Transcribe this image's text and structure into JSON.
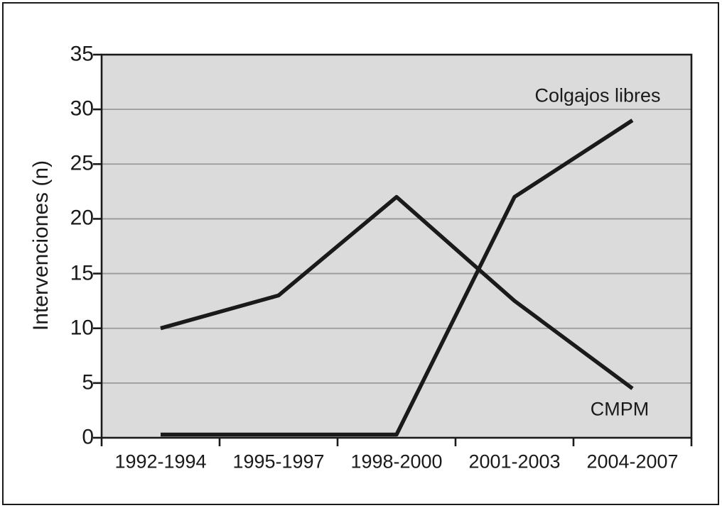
{
  "figure": {
    "background": "#ffffff",
    "frame_color": "#1a1a1a"
  },
  "chart_data": {
    "type": "line",
    "title": "",
    "xlabel": "",
    "ylabel": "Intervenciones (n)",
    "categories": [
      "1992-1994",
      "1995-1997",
      "1998-2000",
      "2001-2003",
      "2004-2007"
    ],
    "series": [
      {
        "name": "Colgajos libres",
        "values": [
          0,
          0,
          0,
          22,
          29
        ]
      },
      {
        "name": "CMPM",
        "values": [
          10,
          13,
          22,
          12.5,
          4.5
        ]
      }
    ],
    "ylim": [
      0,
      35
    ],
    "yticks": [
      0,
      5,
      10,
      15,
      20,
      25,
      30,
      35
    ],
    "grid": "horizontal",
    "legend_position": "inline-annotations",
    "annotations": [
      {
        "text": "Colgajos libres",
        "attached_to": "end of rising line, top right"
      },
      {
        "text": "CMPM",
        "attached_to": "end of falling line, bottom right"
      }
    ],
    "plot_bg": "#dbdbdb",
    "grid_color": "#9a9a9a",
    "line_color": "#1a1a1a",
    "text_color": "#1a1a1a"
  }
}
